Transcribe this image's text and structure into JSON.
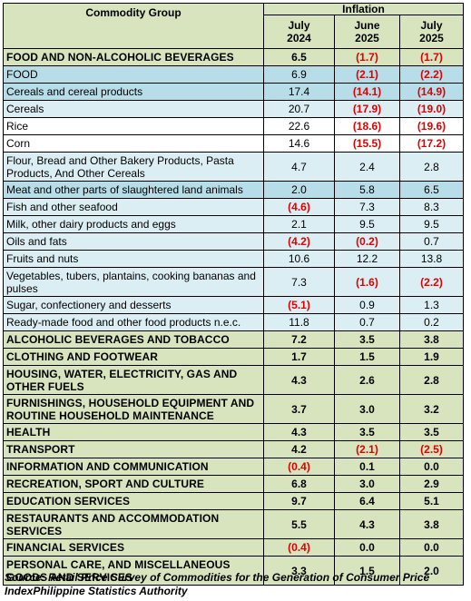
{
  "table": {
    "header": {
      "group": "Commodity Group",
      "inflation": "Inflation",
      "columns": [
        "July\n2024",
        "June\n2025",
        "July\n2025"
      ]
    },
    "rows": [
      [
        "FOOD AND NON-ALCOHOLIC BEVERAGES",
        "6.5",
        "(1.7)",
        "(1.7)"
      ],
      [
        "FOOD",
        "6.9",
        "(2.1)",
        "(2.2)"
      ],
      [
        "Cereals and cereal products",
        "17.4",
        "(14.1)",
        "(14.9)"
      ],
      [
        "Cereals",
        "20.7",
        "(17.9)",
        "(19.0)"
      ],
      [
        "Rice",
        "22.6",
        "(18.6)",
        "(19.6)"
      ],
      [
        "Corn",
        "14.6",
        "(15.5)",
        "(17.2)"
      ],
      [
        "Flour, Bread and Other Bakery Products, Pasta Products, And Other Cereals",
        "4.7",
        "2.4",
        "2.8"
      ],
      [
        "Meat and other parts of slaughtered land animals",
        "2.0",
        "5.8",
        "6.5"
      ],
      [
        "Fish and other seafood",
        "(4.6)",
        "7.3",
        "8.3"
      ],
      [
        "Milk, other dairy products and eggs",
        "2.1",
        "9.5",
        "9.5"
      ],
      [
        "Oils and fats",
        "(4.2)",
        "(0.2)",
        "0.7"
      ],
      [
        "Fruits and nuts",
        "10.6",
        "12.2",
        "13.8"
      ],
      [
        "Vegetables, tubers, plantains, cooking bananas and pulses",
        "7.3",
        "(1.6)",
        "(2.2)"
      ],
      [
        "Sugar, confectionery and desserts",
        "(5.1)",
        "0.9",
        "1.3"
      ],
      [
        "Ready-made food and other food products n.e.c.",
        "11.8",
        "0.7",
        "0.2"
      ],
      [
        "ALCOHOLIC BEVERAGES AND TOBACCO",
        "7.2",
        "3.5",
        "3.8"
      ],
      [
        "CLOTHING AND FOOTWEAR",
        "1.7",
        "1.5",
        "1.9"
      ],
      [
        "HOUSING, WATER, ELECTRICITY, GAS AND OTHER FUELS",
        "4.3",
        "2.6",
        "2.8"
      ],
      [
        "FURNISHINGS, HOUSEHOLD EQUIPMENT AND ROUTINE HOUSEHOLD MAINTENANCE",
        "3.7",
        "3.0",
        "3.2"
      ],
      [
        "HEALTH",
        "4.3",
        "3.5",
        "3.5"
      ],
      [
        "TRANSPORT",
        "4.2",
        "(2.1)",
        "(2.5)"
      ],
      [
        "INFORMATION AND COMMUNICATION",
        "(0.4)",
        "0.1",
        "0.0"
      ],
      [
        "RECREATION, SPORT AND CULTURE",
        "6.8",
        "3.0",
        "2.9"
      ],
      [
        "EDUCATION SERVICES",
        "9.7",
        "6.4",
        "5.1"
      ],
      [
        "RESTAURANTS AND ACCOMMODATION SERVICES",
        "5.5",
        "4.3",
        "3.8"
      ],
      [
        "FINANCIAL SERVICES",
        "(0.4)",
        "0.0",
        "0.0"
      ],
      [
        "PERSONAL CARE, AND MISCELLANEOUS GOODS AND SERVICES",
        "3.3",
        "1.5",
        "2.0"
      ]
    ]
  },
  "source": "Source: Retail Price Survey of Commodities for the Generation of Consumer Price IndexPhilippine Statistics Authority"
}
